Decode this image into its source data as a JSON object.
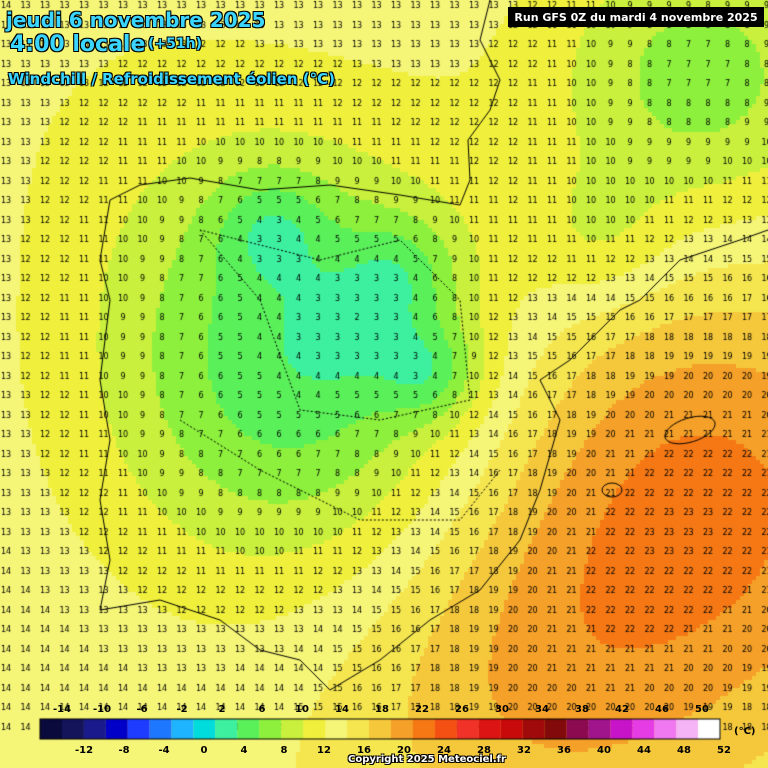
{
  "header": {
    "date": "jeudi 6 novembre 2025",
    "time": "4:00 locale",
    "offset": "(+51h)",
    "product": "Windchill / Refroidissement éolien (°C)",
    "run": "Run GFS 0Z du mardi 4 novembre 2025"
  },
  "legend": {
    "unit": "(°C)",
    "top_labels": [
      "-14",
      "-10",
      "-6",
      "-2",
      "2",
      "6",
      "10",
      "14",
      "18",
      "22",
      "26",
      "30",
      "34",
      "38",
      "42",
      "46",
      "50"
    ],
    "bottom_labels": [
      "-12",
      "-8",
      "-4",
      "0",
      "4",
      "8",
      "12",
      "16",
      "20",
      "24",
      "28",
      "32",
      "36",
      "40",
      "44",
      "48",
      "52"
    ],
    "colors": [
      "#0a0a3c",
      "#14145a",
      "#1a1a8c",
      "#0000c8",
      "#1e3cff",
      "#1e78ff",
      "#1eb4ff",
      "#00dcdc",
      "#3cf0a0",
      "#5af05a",
      "#8cf03c",
      "#c8f03c",
      "#f0f03c",
      "#f5f578",
      "#f5e650",
      "#f5c83c",
      "#f5a028",
      "#f57814",
      "#f55014",
      "#f03228",
      "#dc1414",
      "#c80a0a",
      "#a00a0a",
      "#820a0a",
      "#8c0a50",
      "#a0148c",
      "#c814c8",
      "#e63ce6",
      "#f078f0",
      "#f5b4f5",
      "#ffffff"
    ]
  },
  "copyright": "Copyright 2025 Meteociel.fr"
}
